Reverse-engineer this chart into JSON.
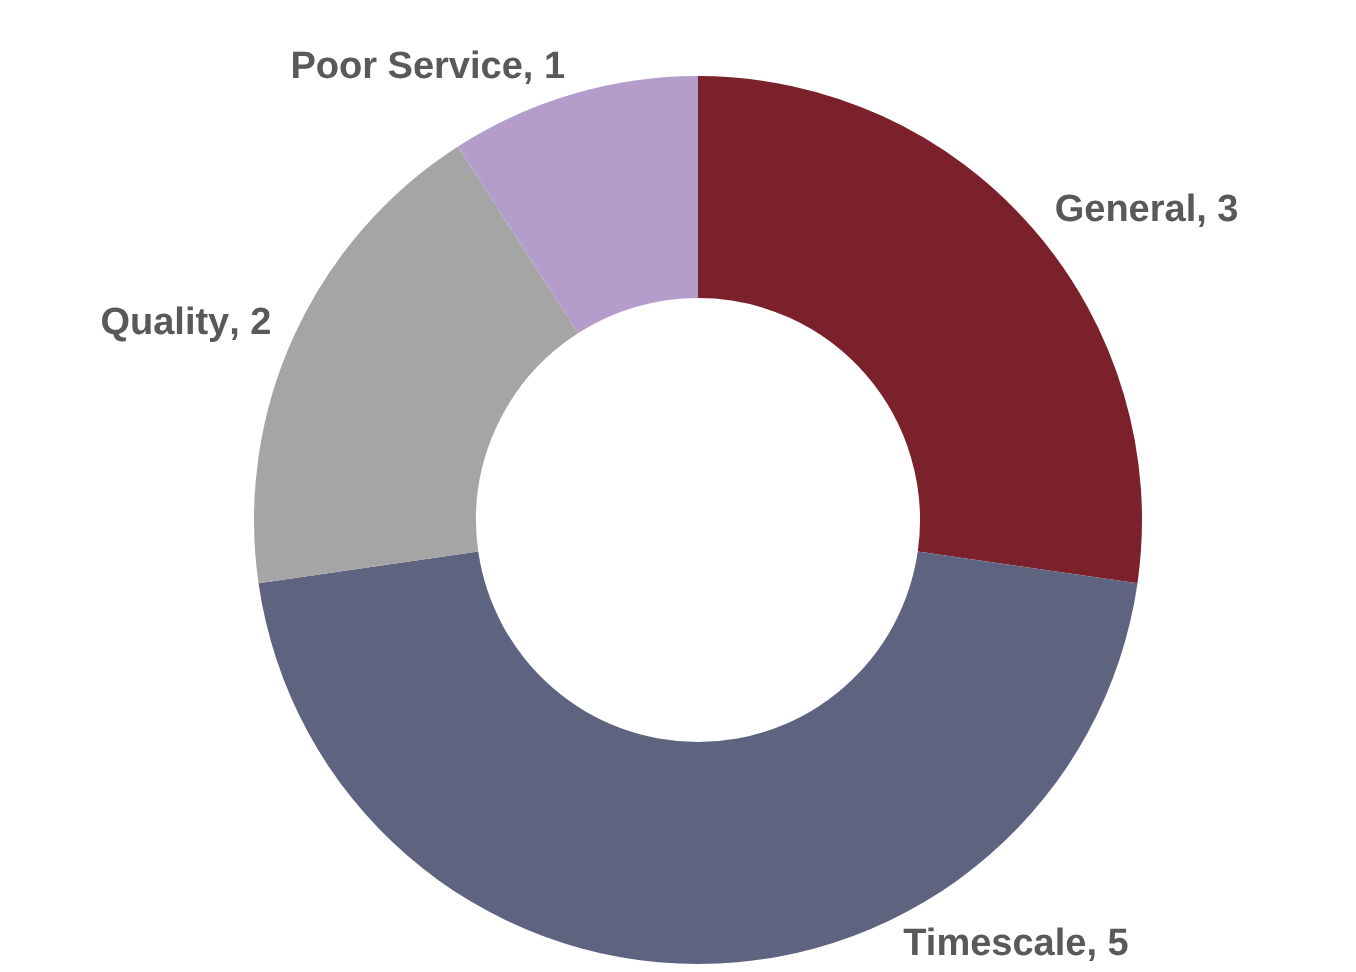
{
  "chart_data": {
    "type": "donut",
    "categories": [
      "General",
      "Timescale",
      "Quality",
      "Poor Service"
    ],
    "values": [
      3,
      5,
      2,
      1
    ],
    "colors": [
      "#7b212b",
      "#5e6380",
      "#a5a5a5",
      "#b49dcb"
    ],
    "value_labels": [
      ", 3",
      ", 5",
      ", 2",
      ", 1"
    ],
    "legend": false
  }
}
